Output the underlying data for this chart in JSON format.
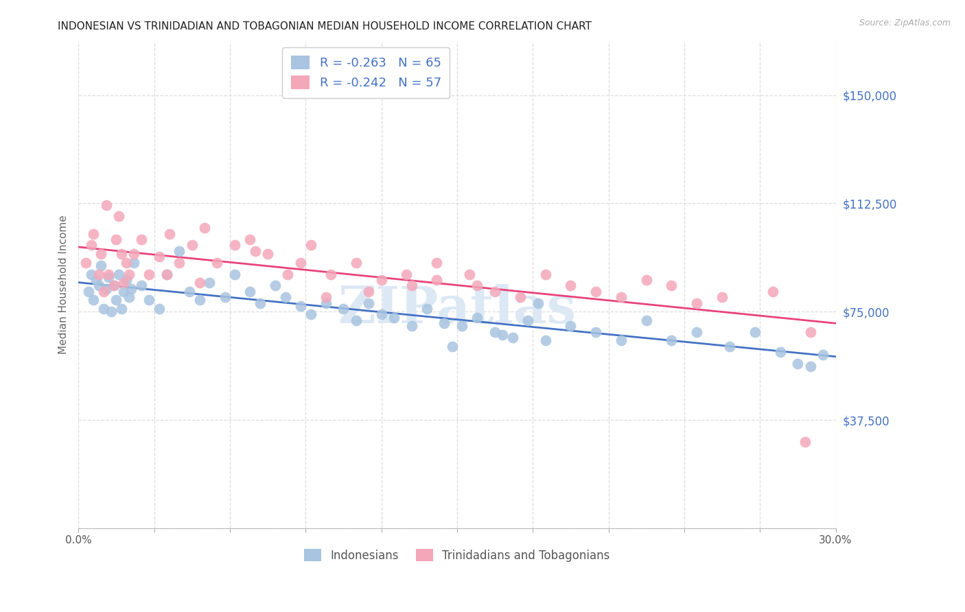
{
  "title": "INDONESIAN VS TRINIDADIAN AND TOBAGONIAN MEDIAN HOUSEHOLD INCOME CORRELATION CHART",
  "source": "Source: ZipAtlas.com",
  "ylabel": "Median Household Income",
  "xlim": [
    0.0,
    0.3
  ],
  "ylim": [
    0,
    168750
  ],
  "yticks": [
    0,
    37500,
    75000,
    112500,
    150000
  ],
  "ytick_labels": [
    "",
    "$37,500",
    "$75,000",
    "$112,500",
    "$150,000"
  ],
  "xticks": [
    0.0,
    0.03,
    0.06,
    0.09,
    0.12,
    0.15,
    0.18,
    0.21,
    0.24,
    0.27,
    0.3
  ],
  "xtick_labels": [
    "0.0%",
    "",
    "",
    "",
    "",
    "",
    "",
    "",
    "",
    "",
    "30.0%"
  ],
  "blue_color": "#a8c4e0",
  "pink_color": "#f4a7b9",
  "blue_line_color": "#4472c4",
  "pink_line_color": "#e8437a",
  "legend_R_blue": "-0.263",
  "legend_N_blue": "65",
  "legend_R_pink": "-0.242",
  "legend_N_pink": "57",
  "legend_label_blue": "Indonesians",
  "legend_label_pink": "Trinidadians and Tobagonians",
  "blue_x": [
    0.004,
    0.005,
    0.006,
    0.007,
    0.008,
    0.009,
    0.01,
    0.011,
    0.012,
    0.013,
    0.014,
    0.015,
    0.016,
    0.017,
    0.018,
    0.019,
    0.02,
    0.021,
    0.022,
    0.025,
    0.028,
    0.032,
    0.035,
    0.04,
    0.044,
    0.048,
    0.052,
    0.058,
    0.062,
    0.068,
    0.072,
    0.078,
    0.082,
    0.088,
    0.092,
    0.098,
    0.105,
    0.11,
    0.115,
    0.12,
    0.125,
    0.132,
    0.138,
    0.145,
    0.152,
    0.158,
    0.165,
    0.172,
    0.178,
    0.185,
    0.195,
    0.205,
    0.215,
    0.225,
    0.235,
    0.245,
    0.258,
    0.268,
    0.278,
    0.285,
    0.182,
    0.148,
    0.168,
    0.295,
    0.29
  ],
  "blue_y": [
    82000,
    88000,
    79000,
    86000,
    84000,
    91000,
    76000,
    83000,
    87000,
    75000,
    84000,
    79000,
    88000,
    76000,
    82000,
    86000,
    80000,
    83000,
    92000,
    84000,
    79000,
    76000,
    88000,
    96000,
    82000,
    79000,
    85000,
    80000,
    88000,
    82000,
    78000,
    84000,
    80000,
    77000,
    74000,
    78000,
    76000,
    72000,
    78000,
    74000,
    73000,
    70000,
    76000,
    71000,
    70000,
    73000,
    68000,
    66000,
    72000,
    65000,
    70000,
    68000,
    65000,
    72000,
    65000,
    68000,
    63000,
    68000,
    61000,
    57000,
    78000,
    63000,
    67000,
    60000,
    56000
  ],
  "pink_x": [
    0.003,
    0.005,
    0.006,
    0.008,
    0.009,
    0.01,
    0.011,
    0.012,
    0.014,
    0.015,
    0.016,
    0.017,
    0.018,
    0.019,
    0.02,
    0.022,
    0.025,
    0.028,
    0.032,
    0.036,
    0.04,
    0.045,
    0.05,
    0.055,
    0.062,
    0.068,
    0.075,
    0.083,
    0.092,
    0.1,
    0.11,
    0.12,
    0.132,
    0.142,
    0.155,
    0.165,
    0.175,
    0.185,
    0.195,
    0.205,
    0.215,
    0.225,
    0.235,
    0.245,
    0.255,
    0.275,
    0.035,
    0.048,
    0.13,
    0.088,
    0.142,
    0.158,
    0.07,
    0.098,
    0.115,
    0.288,
    0.29
  ],
  "pink_y": [
    92000,
    98000,
    102000,
    88000,
    95000,
    82000,
    112000,
    88000,
    84000,
    100000,
    108000,
    95000,
    85000,
    92000,
    88000,
    95000,
    100000,
    88000,
    94000,
    102000,
    92000,
    98000,
    104000,
    92000,
    98000,
    100000,
    95000,
    88000,
    98000,
    88000,
    92000,
    86000,
    84000,
    92000,
    88000,
    82000,
    80000,
    88000,
    84000,
    82000,
    80000,
    86000,
    84000,
    78000,
    80000,
    82000,
    88000,
    85000,
    88000,
    92000,
    86000,
    84000,
    96000,
    80000,
    82000,
    30000,
    68000
  ],
  "watermark": "ZIPatlas",
  "background_color": "#ffffff",
  "grid_color": "#dddddd",
  "title_color": "#222222",
  "axis_label_color": "#666666",
  "tick_label_color_y": "#4472c4",
  "source_color": "#aaaaaa",
  "legend_text_color": "#4472c4"
}
